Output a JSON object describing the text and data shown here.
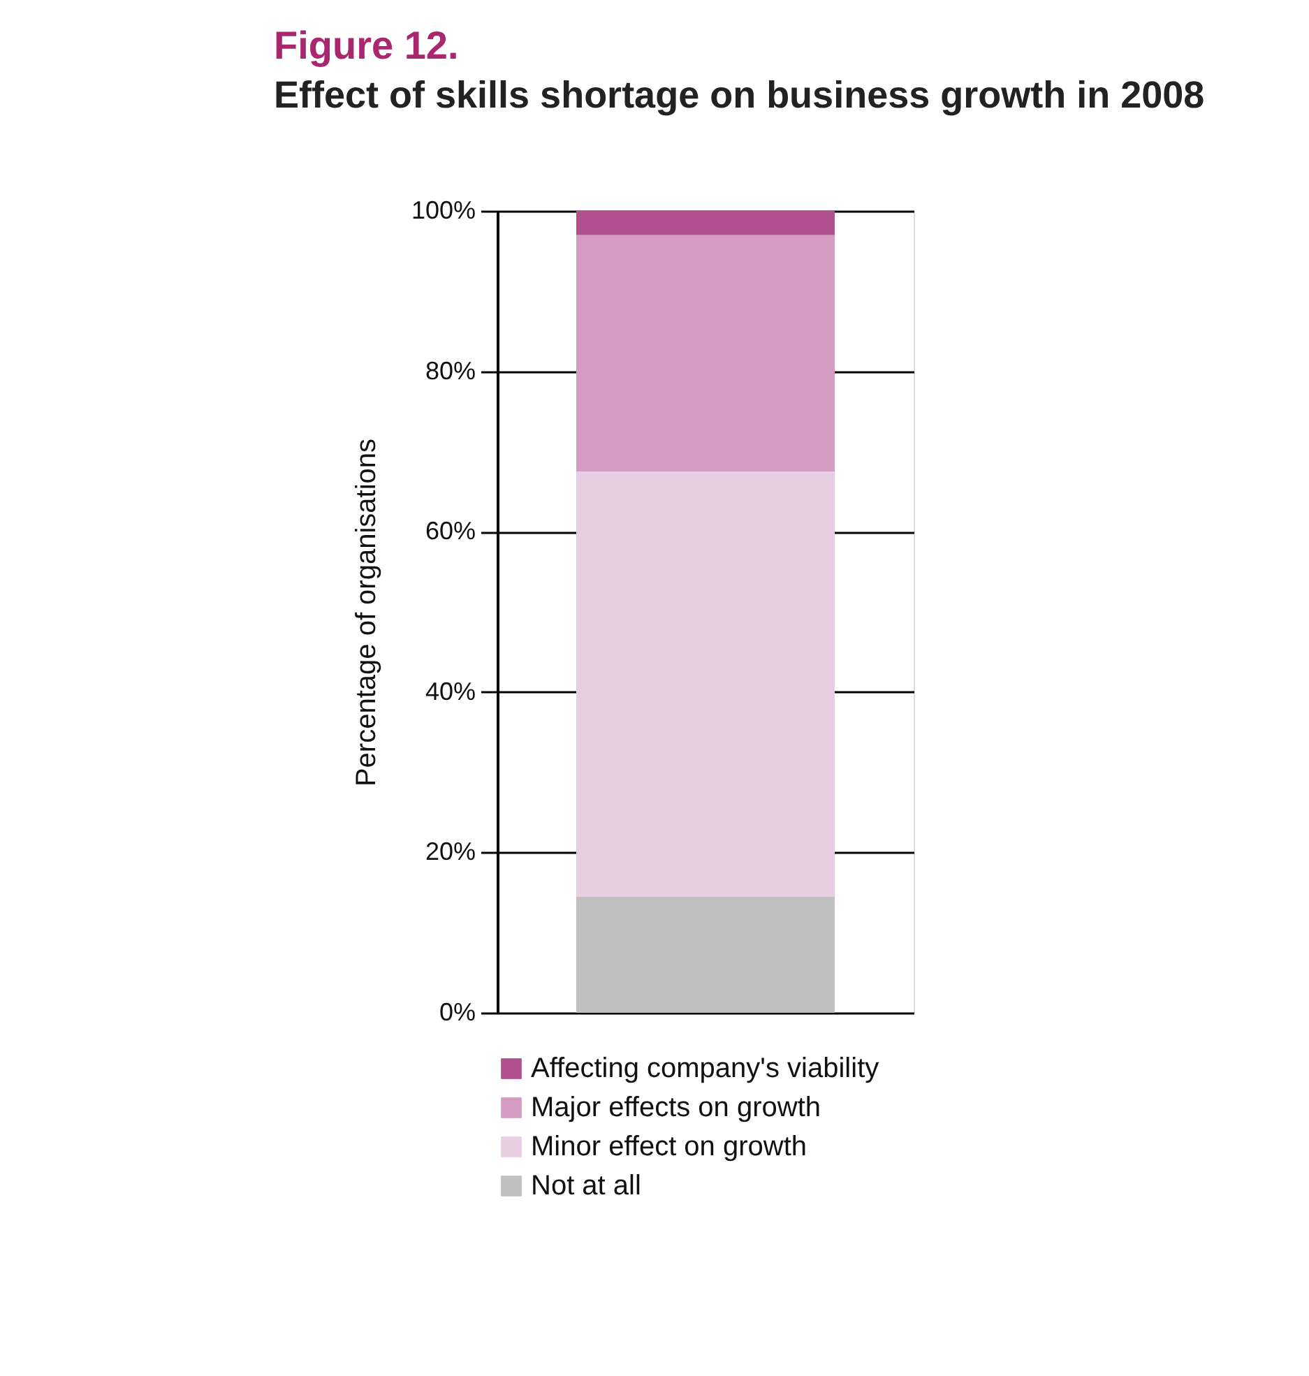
{
  "chart_data": {
    "type": "bar",
    "title": "Figure 12.",
    "subtitle": "Effect of skills shortage on business growth in 2008",
    "ylabel": "Percentage of organisations",
    "categories": [
      null
    ],
    "stacked": true,
    "series": [
      {
        "name": "Not at all",
        "color": "#c0c0c0",
        "values": [
          14.5
        ]
      },
      {
        "name": "Minor effect on growth",
        "color": "#e8cee2",
        "values": [
          53
        ]
      },
      {
        "name": "Major effects on growth",
        "color": "#d49cc3",
        "values": [
          29.5
        ]
      },
      {
        "name": "Affecting company's viability",
        "color": "#b0508f",
        "values": [
          3
        ]
      }
    ],
    "ylim": [
      0,
      100
    ],
    "yticks": [
      {
        "value": 0,
        "label": "0%"
      },
      {
        "value": 20,
        "label": "20%"
      },
      {
        "value": 40,
        "label": "40%"
      },
      {
        "value": 60,
        "label": "60%"
      },
      {
        "value": 80,
        "label": "80%"
      },
      {
        "value": 100,
        "label": "100%"
      }
    ],
    "grid": "y",
    "legend": "bottom left"
  }
}
